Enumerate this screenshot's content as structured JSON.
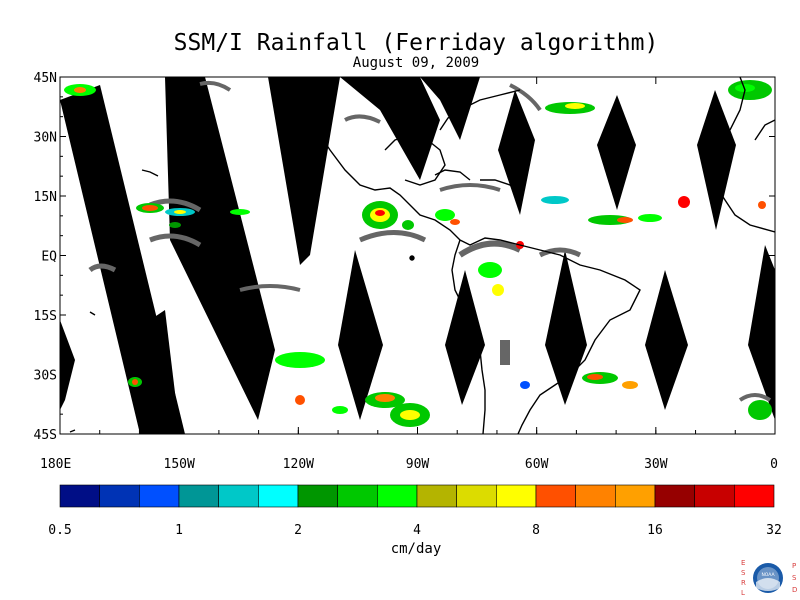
{
  "title": "SSM/I Rainfall (Ferriday algorithm)",
  "subtitle": "August 09, 2009",
  "map": {
    "lat_range": [
      -45,
      45
    ],
    "lon_range": [
      180,
      360
    ],
    "lat_labels": [
      "45N",
      "30N",
      "15N",
      "EQ",
      "15S",
      "30S",
      "45S"
    ],
    "lon_labels": [
      "180E",
      "150W",
      "120W",
      "90W",
      "60W",
      "30W",
      "0"
    ],
    "no_data_color": "#666666",
    "land_outline_color": "#000000"
  },
  "colorbar": {
    "colors": [
      "#000e86",
      "#0033b5",
      "#0050ff",
      "#009696",
      "#00c8c8",
      "#00ffff",
      "#009600",
      "#00c800",
      "#00ff00",
      "#b4b400",
      "#dcdc00",
      "#ffff00",
      "#ff5000",
      "#ff8200",
      "#ffa000",
      "#960000",
      "#c80000",
      "#ff0000"
    ],
    "tick_labels": [
      "0.5",
      "1",
      "2",
      "4",
      "8",
      "16",
      "32"
    ],
    "unit": "cm/day"
  },
  "logo": {
    "left_letters": [
      "E",
      "S",
      "R",
      "L"
    ],
    "right_letters": [
      "P",
      "S",
      "D"
    ],
    "center_text": "NOAA"
  }
}
